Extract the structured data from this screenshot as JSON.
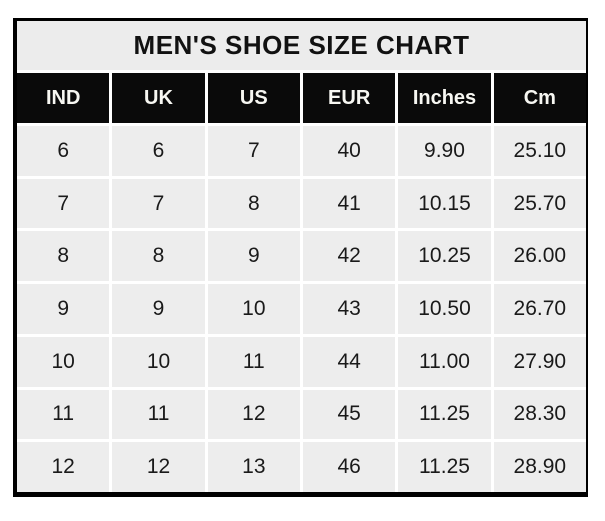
{
  "chart_data": {
    "type": "table",
    "title": "MEN'S SHOE SIZE CHART",
    "columns": [
      "IND",
      "UK",
      "US",
      "EUR",
      "Inches",
      "Cm"
    ],
    "rows": [
      [
        "6",
        "6",
        "7",
        "40",
        "9.90",
        "25.10"
      ],
      [
        "7",
        "7",
        "8",
        "41",
        "10.15",
        "25.70"
      ],
      [
        "8",
        "8",
        "9",
        "42",
        "10.25",
        "26.00"
      ],
      [
        "9",
        "9",
        "10",
        "43",
        "10.50",
        "26.70"
      ],
      [
        "10",
        "10",
        "11",
        "44",
        "11.00",
        "27.90"
      ],
      [
        "11",
        "11",
        "12",
        "45",
        "11.25",
        "28.30"
      ],
      [
        "12",
        "12",
        "13",
        "46",
        "11.25",
        "28.90"
      ]
    ],
    "layout": {
      "legend": "none",
      "grid": "white gaps between cells",
      "title_position": "top row spanning all columns"
    }
  },
  "colors": {
    "title_bg": "#ececec",
    "title_text": "#111111",
    "header_bg": "#0a0a0a",
    "header_text": "#f7f7f2",
    "cell_bg": "#ededed",
    "cell_text": "#1a1a1a",
    "border": "#000000",
    "gap": "#ffffff"
  }
}
